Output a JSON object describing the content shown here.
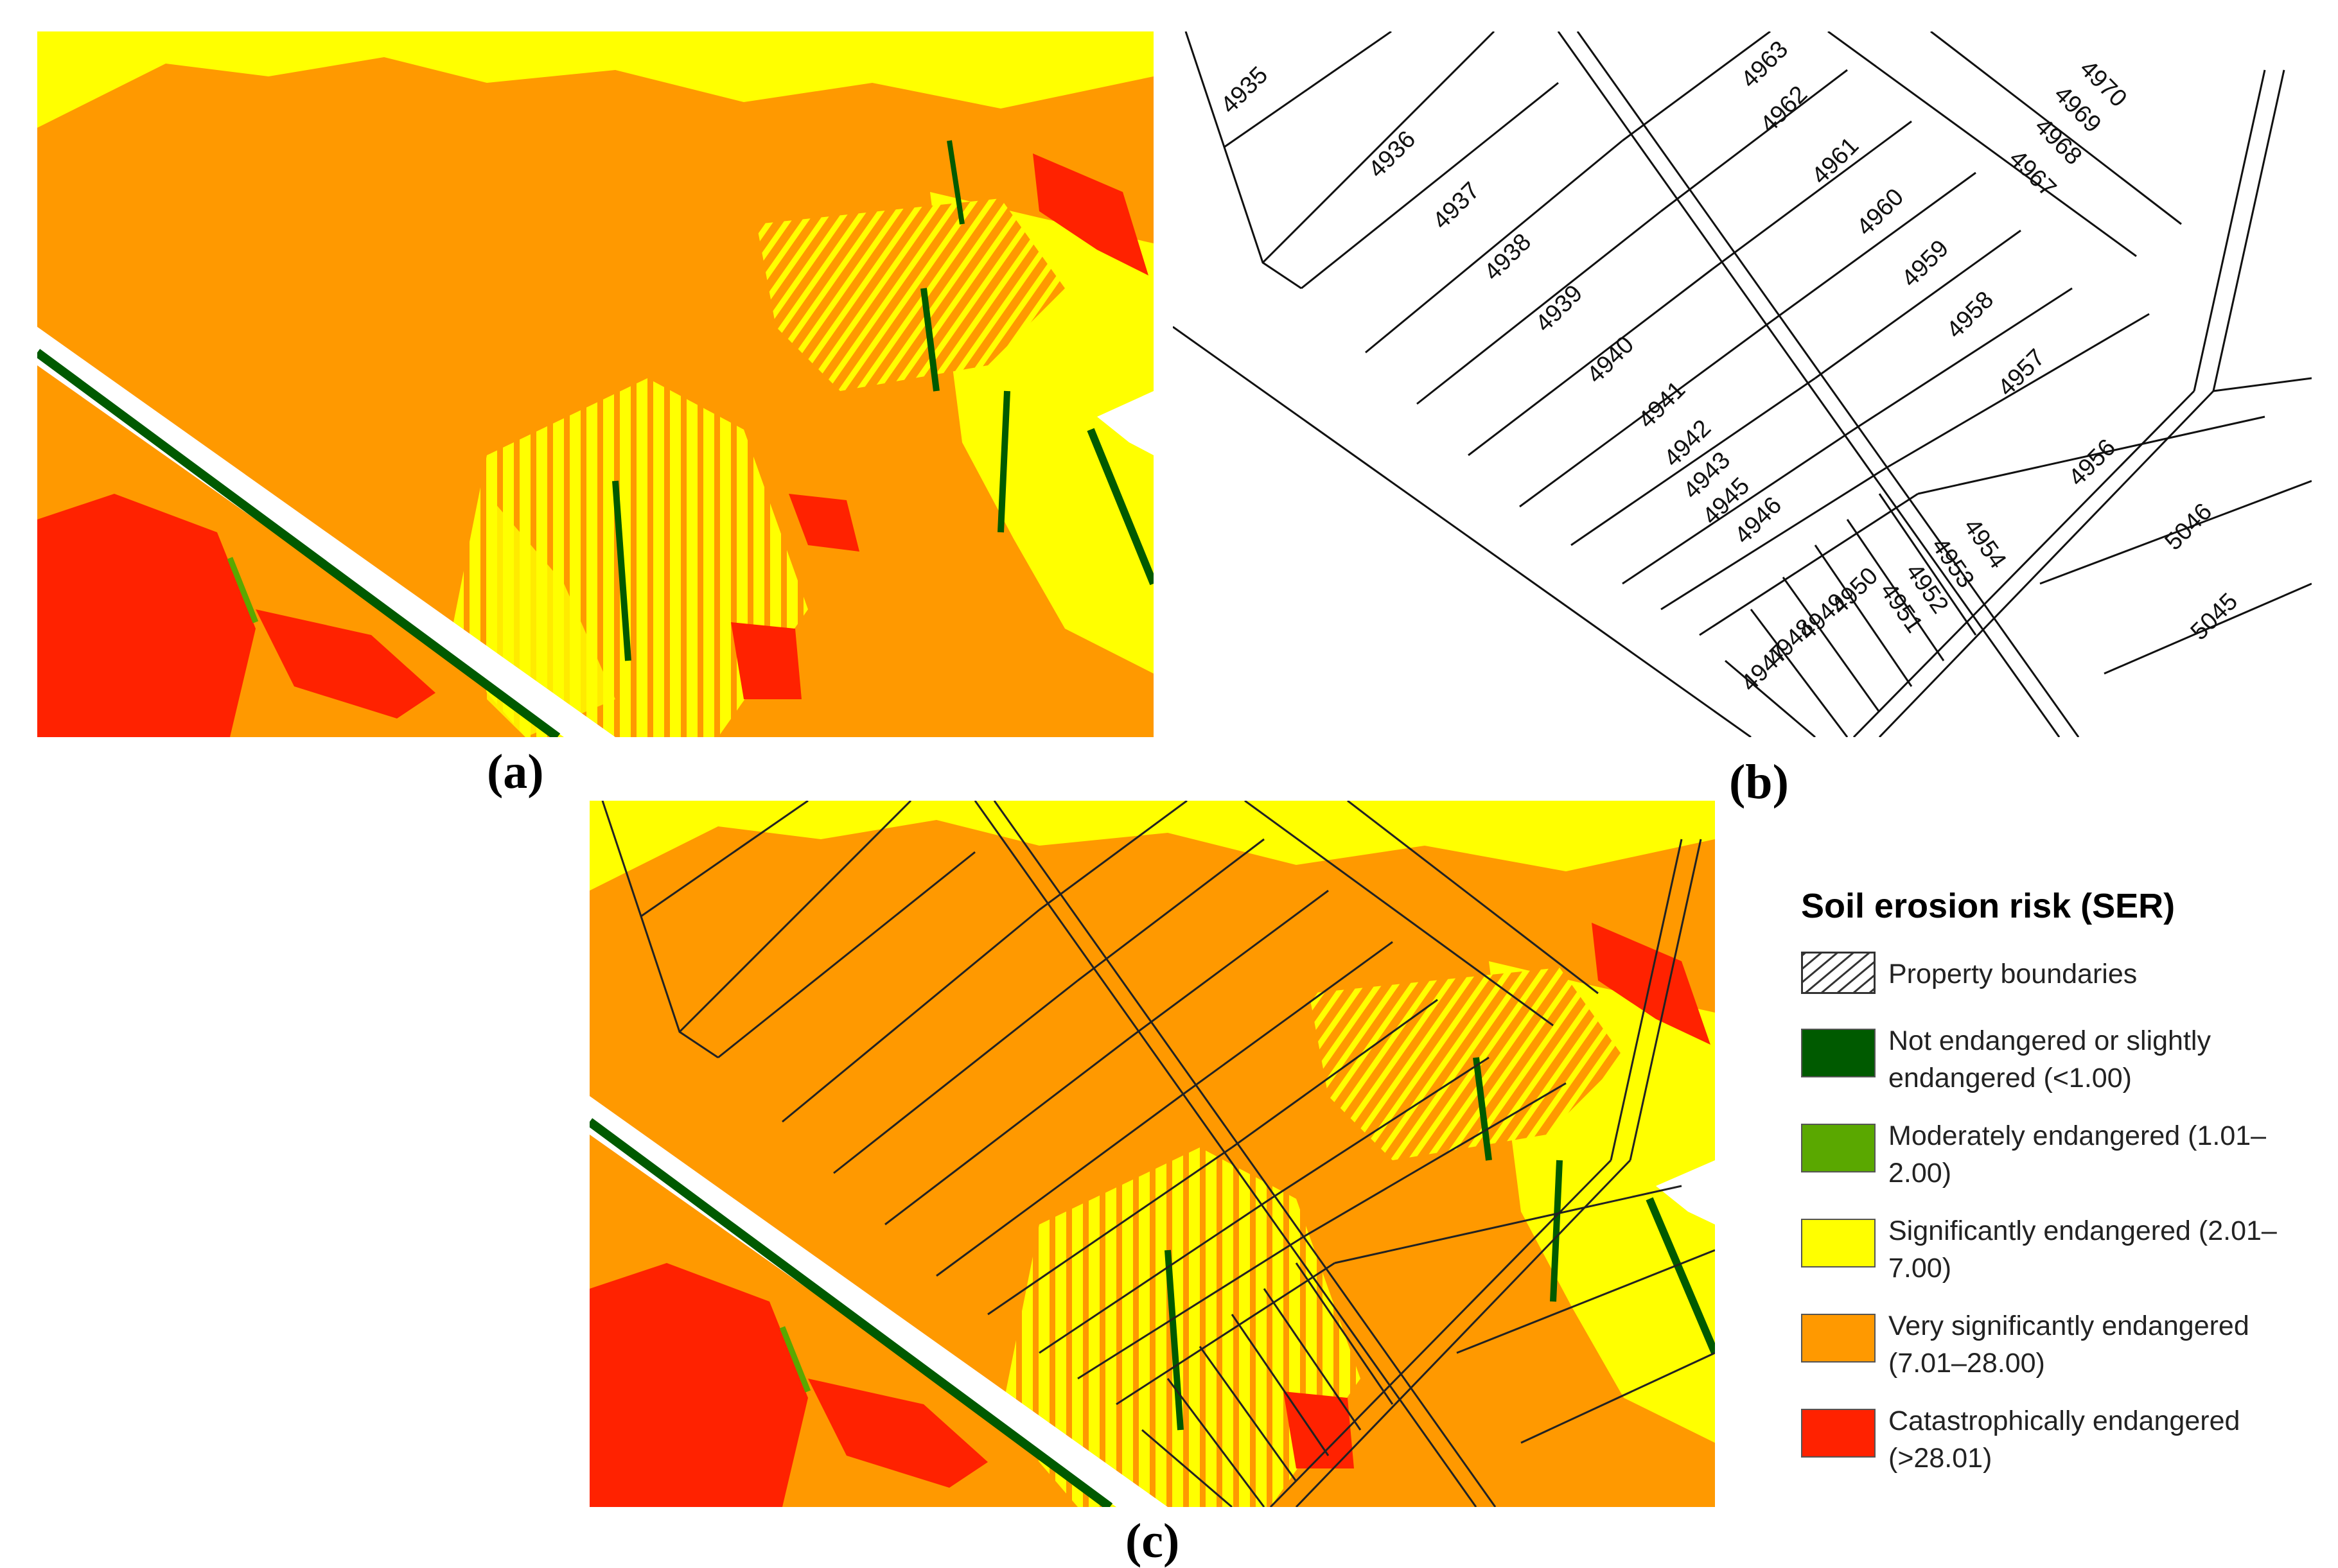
{
  "panels": {
    "a": {
      "label": "(a)"
    },
    "b": {
      "label": "(b)"
    },
    "c": {
      "label": "(c)"
    }
  },
  "parcels": [
    "4935",
    "4936",
    "4937",
    "4938",
    "4939",
    "4940",
    "4941",
    "4942",
    "4943",
    "4945",
    "4946",
    "4947",
    "4948",
    "4949",
    "4950",
    "4951",
    "4952",
    "4953",
    "4954",
    "4956",
    "4957",
    "4958",
    "4959",
    "4960",
    "4961",
    "4962",
    "4963",
    "4967",
    "4968",
    "4969",
    "4970",
    "5045",
    "5046"
  ],
  "legend": {
    "title": "Soil erosion risk (SER)",
    "boundary": {
      "label": "Property boundaries"
    },
    "classes": [
      {
        "label": "Not endangered or slightly endangered (<1.00)",
        "color": "#005a00"
      },
      {
        "label": "Moderately endangered (1.01–2.00)",
        "color": "#5aa800"
      },
      {
        "label": "Significantly endangered (2.01–7.00)",
        "color": "#ffff00"
      },
      {
        "label": "Very significantly endangered (7.01–28.00)",
        "color": "#ff9900"
      },
      {
        "label": "Catastrophically endangered (>28.01)",
        "color": "#ff2200"
      }
    ]
  }
}
